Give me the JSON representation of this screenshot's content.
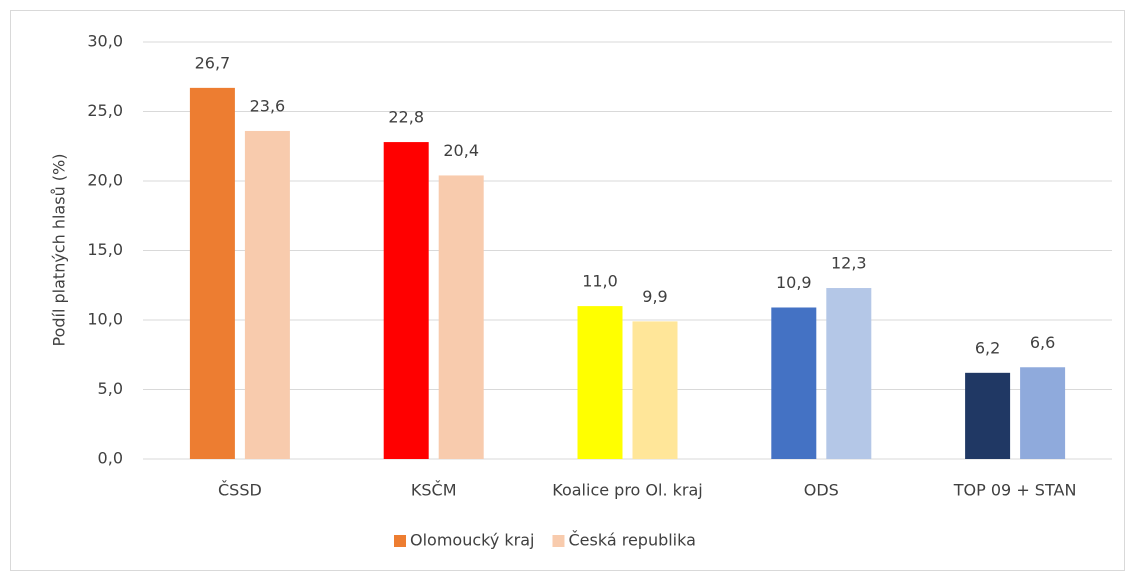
{
  "chart_data": {
    "type": "bar",
    "y_label": "Podíl platných hlasů (%)",
    "categories": [
      "ČSSD",
      "KSČM",
      "Koalice pro Ol. kraj",
      "ODS",
      "TOP 09 + STAN"
    ],
    "series": [
      {
        "name": "Olomoucký kraj",
        "color": "#ed7d31",
        "colors": [
          "#ed7d31",
          "#ff0000",
          "#ffff00",
          "#4472c4",
          "#203864"
        ],
        "values": [
          26.7,
          22.8,
          11.0,
          10.9,
          6.2
        ],
        "value_labels": [
          "26,7",
          "22,8",
          "11,0",
          "10,9",
          "6,2"
        ]
      },
      {
        "name": "Česká republika",
        "color": "#f8cbad",
        "colors": [
          "#f8cbad",
          "#f8cbad",
          "#ffe699",
          "#b4c7e7",
          "#8faadc"
        ],
        "values": [
          23.6,
          20.4,
          9.9,
          12.3,
          6.6
        ],
        "value_labels": [
          "23,6",
          "20,4",
          "9,9",
          "12,3",
          "6,6"
        ]
      }
    ],
    "ylim": [
      0,
      30
    ],
    "yticks": [
      {
        "value": 0,
        "label": "0,0"
      },
      {
        "value": 5,
        "label": "5,0"
      },
      {
        "value": 10,
        "label": "10,0"
      },
      {
        "value": 15,
        "label": "15,0"
      },
      {
        "value": 20,
        "label": "20,0"
      },
      {
        "value": 25,
        "label": "25,0"
      },
      {
        "value": 30,
        "label": "30,0"
      }
    ],
    "grid": true,
    "legend": "bottom"
  }
}
